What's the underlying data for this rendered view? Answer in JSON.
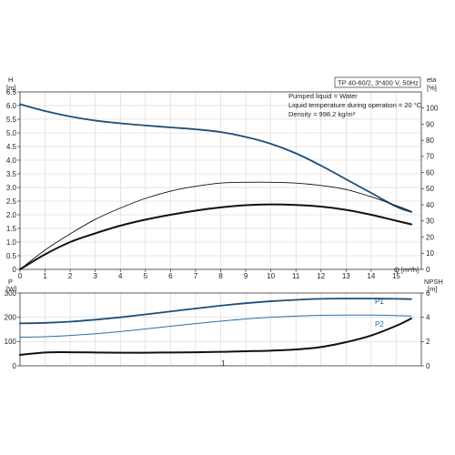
{
  "chart_data": [
    {
      "type": "line",
      "info": {
        "header": "TP 40-60/2, 3*400 V, 50Hz",
        "lines": [
          "Pumped liquid = Water",
          "Liquid temperature during operation = 20 °C",
          "Density = 998.2 kg/m³"
        ]
      },
      "xlabel": "Q [m³/h]",
      "xlim": [
        0,
        16
      ],
      "xticks": [
        0,
        1,
        2,
        3,
        4,
        5,
        6,
        7,
        8,
        9,
        10,
        11,
        12,
        13,
        14,
        15
      ],
      "y_left": {
        "label_top": "H",
        "label_unit": "[m]",
        "ylim": [
          0,
          6.5
        ],
        "ticks": [
          "0",
          "0.5",
          "1.0",
          "1.5",
          "2.0",
          "2.5",
          "3.0",
          "3.5",
          "4.0",
          "4.5",
          "5.0",
          "5.5",
          "6.0",
          "6.5"
        ]
      },
      "y_right": {
        "label_top": "eta",
        "label_unit": "[%]",
        "ylim": [
          0,
          110
        ],
        "ticks": [
          "0",
          "10",
          "20",
          "30",
          "40",
          "50",
          "60",
          "70",
          "80",
          "90",
          "100"
        ]
      },
      "grid": true,
      "series": [
        {
          "axis": "left",
          "color": "#1b4f7a",
          "width": 1.8,
          "x": [
            0,
            1,
            2,
            3,
            4,
            5,
            6,
            7,
            8,
            9,
            10,
            11,
            12,
            13,
            14,
            15,
            15.6
          ],
          "y": [
            6.05,
            5.8,
            5.6,
            5.45,
            5.35,
            5.27,
            5.2,
            5.13,
            5.03,
            4.85,
            4.6,
            4.25,
            3.8,
            3.3,
            2.8,
            2.3,
            2.1
          ]
        },
        {
          "axis": "right",
          "color": "#111111",
          "width": 0.9,
          "x": [
            0,
            1,
            2,
            3,
            4,
            5,
            6,
            7,
            8,
            9,
            10,
            11,
            12,
            13,
            14,
            15,
            15.6
          ],
          "y": [
            0,
            12,
            22,
            31,
            38,
            44,
            48.5,
            51.5,
            53.5,
            54,
            54,
            53.5,
            52,
            49.5,
            45,
            39.5,
            36
          ]
        },
        {
          "axis": "left",
          "color": "#111111",
          "width": 2.0,
          "x": [
            0,
            1,
            2,
            3,
            4,
            5,
            6,
            7,
            8,
            9,
            10,
            11,
            12,
            13,
            14,
            15,
            15.6
          ],
          "y": [
            0,
            0.55,
            1.0,
            1.32,
            1.6,
            1.82,
            2.0,
            2.15,
            2.27,
            2.35,
            2.38,
            2.36,
            2.3,
            2.18,
            2.0,
            1.78,
            1.65
          ]
        }
      ]
    },
    {
      "type": "line",
      "xlim": [
        0,
        16
      ],
      "y_left": {
        "label_top": "P",
        "label_unit": "[W]",
        "ylim": [
          0,
          300
        ],
        "ticks": [
          "0",
          "100",
          "200",
          "300"
        ]
      },
      "y_right": {
        "label_top": "NPSH",
        "label_unit": "[m]",
        "ylim": [
          0,
          6
        ],
        "ticks": [
          "0",
          "2",
          "4",
          "6"
        ]
      },
      "grid": true,
      "center_label": "1",
      "series": [
        {
          "name": "P1",
          "axis": "left",
          "color": "#1b4f7a",
          "width": 1.8,
          "x": [
            0,
            1,
            2,
            3,
            4,
            5,
            6,
            7,
            8,
            9,
            10,
            11,
            12,
            13,
            14,
            15,
            15.6
          ],
          "y": [
            175,
            177,
            182,
            190,
            200,
            212,
            224,
            236,
            248,
            258,
            266,
            272,
            276,
            277,
            277,
            276,
            275
          ]
        },
        {
          "name": "P2",
          "axis": "left",
          "color": "#2a6fa8",
          "width": 1.0,
          "x": [
            0,
            1,
            2,
            3,
            4,
            5,
            6,
            7,
            8,
            9,
            10,
            11,
            12,
            13,
            14,
            15,
            15.6
          ],
          "y": [
            118,
            120,
            125,
            132,
            141,
            152,
            163,
            174,
            184,
            193,
            200,
            205,
            208,
            209,
            209,
            207,
            205
          ]
        },
        {
          "axis": "right",
          "color": "#111111",
          "width": 2.0,
          "x": [
            0,
            1,
            2,
            3,
            4,
            5,
            6,
            7,
            8,
            9,
            10,
            11,
            12,
            13,
            14,
            15,
            15.6
          ],
          "y": [
            0.9,
            1.1,
            1.12,
            1.1,
            1.08,
            1.08,
            1.1,
            1.12,
            1.15,
            1.2,
            1.25,
            1.35,
            1.55,
            1.95,
            2.5,
            3.3,
            3.9
          ]
        }
      ]
    }
  ]
}
